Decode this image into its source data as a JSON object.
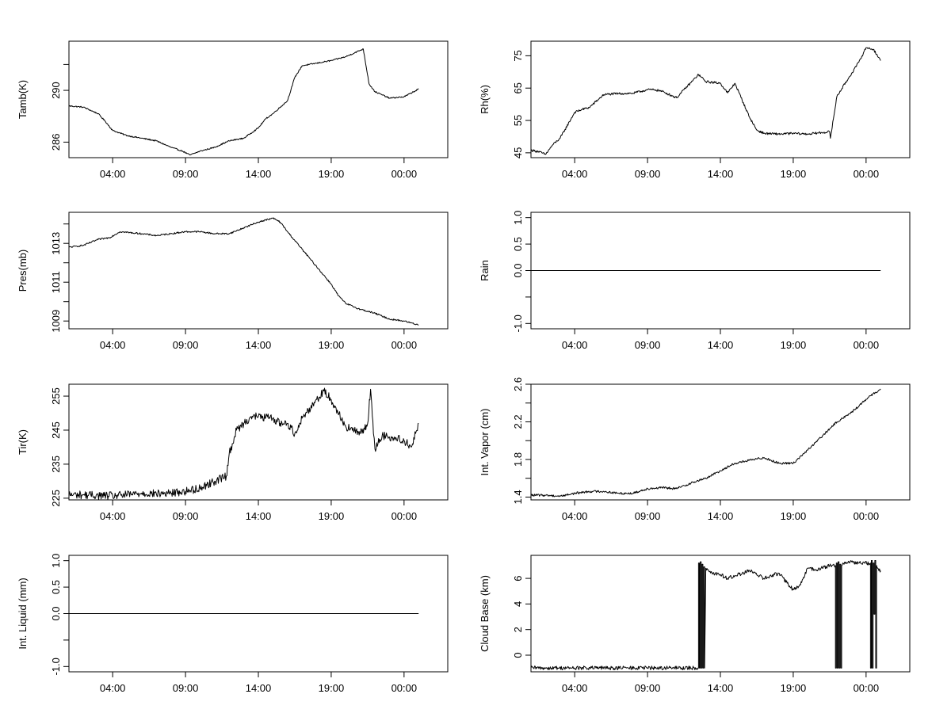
{
  "figure": {
    "layout": "4x2 panel grid of time series",
    "x_tick_labels": [
      "04:00",
      "09:00",
      "14:00",
      "19:00",
      "00:00"
    ]
  },
  "chart_data": [
    {
      "id": "tamb",
      "type": "line",
      "ylabel": "Tamb(K)",
      "ylim": [
        284.8,
        293.8
      ],
      "yticks": [
        286,
        290
      ],
      "ytick_labels": [
        "286",
        "290"
      ],
      "extra_yticks": [
        292
      ],
      "xlim": [
        0,
        26
      ],
      "xticks": [
        3,
        8,
        13,
        18,
        23
      ],
      "xtick_labels": [
        "04:00",
        "09:00",
        "14:00",
        "19:00",
        "00:00"
      ],
      "noise": 0.05,
      "series": [
        {
          "name": "Tamb",
          "x": [
            0,
            1,
            2,
            2.5,
            3,
            4,
            5,
            6,
            7,
            7.8,
            8.3,
            9,
            10,
            11,
            12,
            13,
            13.5,
            14,
            15,
            15.5,
            16,
            16.5,
            17,
            18,
            19,
            20.2,
            20.6,
            21,
            22,
            23,
            24
          ],
          "values": [
            288.8,
            288.7,
            288.2,
            287.6,
            286.9,
            286.5,
            286.3,
            286.1,
            285.6,
            285.3,
            285.0,
            285.3,
            285.6,
            286.1,
            286.3,
            287.1,
            287.8,
            288.2,
            289.2,
            291.0,
            291.9,
            292.0,
            292.1,
            292.3,
            292.6,
            293.2,
            290.5,
            289.9,
            289.4,
            289.5,
            290.1
          ]
        }
      ]
    },
    {
      "id": "rh",
      "type": "line",
      "ylabel": "Rh(%)",
      "ylim": [
        43.5,
        79.5
      ],
      "yticks": [
        45,
        55,
        65,
        75
      ],
      "ytick_labels": [
        "45",
        "55",
        "65",
        "75"
      ],
      "xlim": [
        0,
        26
      ],
      "xticks": [
        3,
        8,
        13,
        18,
        23
      ],
      "xtick_labels": [
        "04:00",
        "09:00",
        "14:00",
        "19:00",
        "00:00"
      ],
      "noise": 0.35,
      "series": [
        {
          "name": "Rh",
          "x": [
            0,
            0.5,
            1,
            1.5,
            2,
            3,
            3.5,
            4,
            5,
            6,
            7,
            8,
            8.5,
            9,
            10,
            10.5,
            11,
            11.5,
            12,
            13,
            13.5,
            14,
            15,
            15.5,
            16,
            17,
            18,
            19,
            20.5,
            20.55,
            21,
            22,
            22.5,
            23,
            23.5,
            24
          ],
          "values": [
            45.8,
            45.4,
            44.5,
            47.5,
            49.5,
            57.5,
            58.4,
            59.0,
            63.0,
            63.3,
            63.4,
            64.5,
            64.5,
            64.0,
            62.0,
            64.5,
            66.8,
            69.2,
            67.0,
            66.5,
            63.5,
            66.5,
            56.0,
            52.0,
            51.0,
            50.8,
            51.0,
            50.8,
            51.5,
            49.5,
            62.5,
            69.5,
            73.0,
            77.5,
            77.0,
            73.5
          ]
        }
      ]
    },
    {
      "id": "pres",
      "type": "line",
      "ylabel": "Pres(mb)",
      "ylim": [
        1008.6,
        1014.6
      ],
      "yticks": [
        1009,
        1011,
        1013
      ],
      "ytick_labels": [
        "1009",
        "1011",
        "1013"
      ],
      "extra_yticks": [
        1010,
        1012,
        1014
      ],
      "xlim": [
        0,
        26
      ],
      "xticks": [
        3,
        8,
        13,
        18,
        23
      ],
      "xtick_labels": [
        "04:00",
        "09:00",
        "14:00",
        "19:00",
        "00:00"
      ],
      "noise": 0.04,
      "series": [
        {
          "name": "Pres",
          "x": [
            0,
            1,
            2,
            2.8,
            3.5,
            5,
            6,
            7,
            8,
            9,
            10,
            11,
            12,
            13,
            14,
            14.5,
            15,
            16,
            17,
            18,
            18.5,
            19,
            20,
            21,
            22,
            23,
            24
          ],
          "values": [
            1012.8,
            1012.9,
            1013.2,
            1013.3,
            1013.6,
            1013.5,
            1013.4,
            1013.5,
            1013.6,
            1013.6,
            1013.5,
            1013.5,
            1013.8,
            1014.1,
            1014.3,
            1014.1,
            1013.6,
            1012.7,
            1011.8,
            1010.9,
            1010.3,
            1009.9,
            1009.6,
            1009.4,
            1009.1,
            1009.0,
            1008.8
          ]
        }
      ]
    },
    {
      "id": "rain",
      "type": "line",
      "ylabel": "Rain",
      "ylim": [
        -1.1,
        1.1
      ],
      "yticks": [
        -1.0,
        -0.5,
        0.0,
        0.5,
        1.0
      ],
      "ytick_labels": [
        "-1.0",
        "",
        "0.0",
        "0.5",
        "1.0"
      ],
      "xlim": [
        0,
        26
      ],
      "xticks": [
        3,
        8,
        13,
        18,
        23
      ],
      "xtick_labels": [
        "04:00",
        "09:00",
        "14:00",
        "19:00",
        "00:00"
      ],
      "noise": 0,
      "series": [
        {
          "name": "Rain",
          "x": [
            0,
            24
          ],
          "values": [
            0,
            0
          ]
        }
      ]
    },
    {
      "id": "tir",
      "type": "line",
      "ylabel": "Tir(K)",
      "ylim": [
        224.5,
        258.5
      ],
      "yticks": [
        225,
        235,
        245,
        255
      ],
      "ytick_labels": [
        "225",
        "235",
        "245",
        "255"
      ],
      "xlim": [
        0,
        26
      ],
      "xticks": [
        3,
        8,
        13,
        18,
        23
      ],
      "xtick_labels": [
        "04:00",
        "09:00",
        "14:00",
        "19:00",
        "00:00"
      ],
      "noise": 1.2,
      "series": [
        {
          "name": "Tir",
          "x": [
            0,
            1,
            2,
            3,
            4,
            5,
            6,
            7,
            8,
            9,
            10,
            10.8,
            11,
            11.5,
            12,
            12.5,
            13,
            14,
            14.5,
            15,
            15.5,
            16,
            17,
            17.5,
            18,
            19,
            20,
            20.5,
            20.7,
            20.9,
            21,
            21.5,
            22,
            23,
            23.5,
            24
          ],
          "values": [
            226.0,
            226.0,
            225.8,
            225.7,
            226.0,
            226.5,
            226.3,
            226.5,
            227.0,
            228.0,
            230.0,
            231.5,
            238.0,
            245.0,
            247.0,
            249.0,
            249.0,
            248.5,
            247.0,
            247.0,
            244.0,
            248.5,
            254.0,
            256.5,
            254.0,
            246.0,
            244.0,
            247.0,
            257.0,
            244.0,
            239.5,
            243.5,
            243.0,
            242.0,
            240.0,
            247.0
          ]
        }
      ]
    },
    {
      "id": "vapor",
      "type": "line",
      "ylabel": "Int. Vapor (cm)",
      "ylim": [
        1.37,
        2.6
      ],
      "yticks": [
        1.4,
        1.6,
        1.8,
        2.0,
        2.2,
        2.4,
        2.6
      ],
      "ytick_labels": [
        "1.4",
        "",
        "1.8",
        "",
        "2.2",
        "",
        "2.6"
      ],
      "xlim": [
        0,
        26
      ],
      "xticks": [
        3,
        8,
        13,
        18,
        23
      ],
      "xtick_labels": [
        "04:00",
        "09:00",
        "14:00",
        "19:00",
        "00:00"
      ],
      "noise": 0.012,
      "series": [
        {
          "name": "Int. Vapor",
          "x": [
            0,
            1,
            2,
            3,
            4,
            5,
            6,
            7,
            8,
            9,
            10,
            11,
            12,
            13,
            14,
            15,
            16,
            17,
            18,
            19,
            20,
            21,
            22,
            23,
            24
          ],
          "values": [
            1.42,
            1.42,
            1.41,
            1.44,
            1.46,
            1.46,
            1.44,
            1.44,
            1.49,
            1.5,
            1.49,
            1.55,
            1.6,
            1.68,
            1.76,
            1.79,
            1.82,
            1.76,
            1.76,
            1.9,
            2.05,
            2.2,
            2.3,
            2.44,
            2.55
          ]
        }
      ]
    },
    {
      "id": "liquid",
      "type": "line",
      "ylabel": "Int. Liquid (mm)",
      "ylim": [
        -1.1,
        1.1
      ],
      "yticks": [
        -1.0,
        -0.5,
        0.0,
        0.5,
        1.0
      ],
      "ytick_labels": [
        "-1.0",
        "",
        "0.0",
        "0.5",
        "1.0"
      ],
      "xlim": [
        0,
        26
      ],
      "xticks": [
        3,
        8,
        13,
        18,
        23
      ],
      "xtick_labels": [
        "04:00",
        "09:00",
        "14:00",
        "19:00",
        "00:00"
      ],
      "noise": 0,
      "series": [
        {
          "name": "Int. Liquid",
          "x": [
            0,
            24
          ],
          "values": [
            0,
            0
          ]
        }
      ]
    },
    {
      "id": "cloudbase",
      "type": "line",
      "ylabel": "Cloud Base (km)",
      "ylim": [
        -1.3,
        7.8
      ],
      "yticks": [
        0,
        2,
        4,
        6
      ],
      "ytick_labels": [
        "0",
        "2",
        "4",
        "6"
      ],
      "xlim": [
        0,
        26
      ],
      "xticks": [
        3,
        8,
        13,
        18,
        23
      ],
      "xtick_labels": [
        "04:00",
        "09:00",
        "14:00",
        "19:00",
        "00:00"
      ],
      "noise": 0.15,
      "series": [
        {
          "name": "Cloud Base",
          "x": [
            0,
            11.5,
            11.5,
            11.56,
            11.56,
            11.62,
            11.62,
            11.68,
            11.68,
            11.74,
            11.74,
            11.8,
            11.8,
            11.86,
            11.86,
            11.92,
            11.92,
            12.0,
            12.5,
            13,
            13.5,
            14,
            15,
            16,
            17,
            18,
            18.5,
            19,
            19.5,
            20,
            20.5,
            20.9,
            20.9,
            20.96,
            20.96,
            21.02,
            21.02,
            21.08,
            21.08,
            21.14,
            21.14,
            21.2,
            21.2,
            21.26,
            21.26,
            21.32,
            21.32,
            21.4,
            22,
            22.5,
            23.3,
            23.3,
            23.36,
            23.36,
            23.42,
            23.42,
            23.48,
            23.48,
            23.54,
            23.54,
            23.6,
            23.6,
            23.66,
            23.66,
            23.72,
            23.72,
            23.8,
            24
          ],
          "values": [
            -1.0,
            -1.0,
            7.2,
            7.2,
            -1.0,
            -1.0,
            7.3,
            7.3,
            -1.0,
            -1.0,
            7.1,
            7.1,
            -1.0,
            -1.0,
            6.9,
            6.9,
            -1.0,
            6.8,
            6.4,
            6.3,
            6.0,
            6.2,
            6.6,
            6.0,
            6.4,
            5.1,
            5.5,
            6.8,
            6.7,
            6.8,
            7.0,
            7.0,
            -1.0,
            -1.0,
            7.2,
            7.2,
            -1.0,
            -1.0,
            7.3,
            7.3,
            -1.0,
            -1.0,
            7.1,
            7.1,
            -1.0,
            -1.0,
            7.0,
            7.2,
            7.3,
            7.2,
            7.2,
            -1.0,
            -1.0,
            7.4,
            7.4,
            -1.0,
            -1.0,
            7.2,
            7.2,
            3.2,
            3.2,
            7.4,
            7.4,
            -1.0,
            -1.0,
            7.0,
            6.8,
            6.6
          ]
        }
      ]
    }
  ]
}
